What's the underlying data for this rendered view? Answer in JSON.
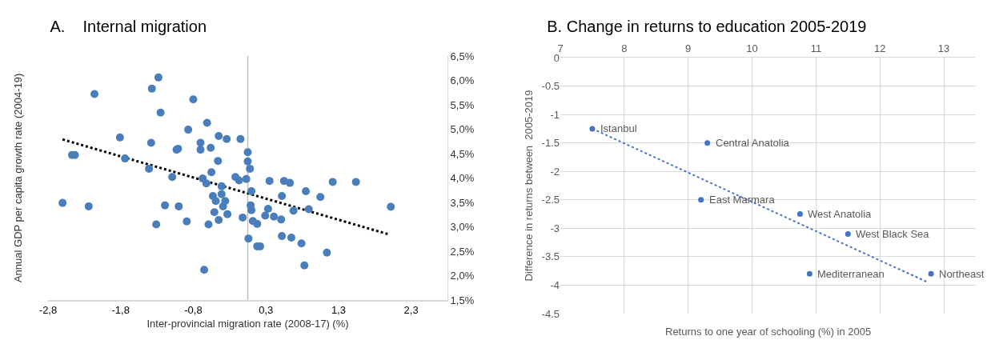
{
  "chart_data": [
    {
      "type": "scatter",
      "title": "A.    Internal migration",
      "xlabel": "Inter-provincial migration rate (2008-17) (%)",
      "ylabel": "Annual GDP per capita growth rate (2004-19)",
      "series": [
        {
          "marker": "circle",
          "color": "#4a7ebb",
          "x": [
            -1.23,
            -2.11,
            -1.32,
            -0.75,
            -1.2,
            -0.56,
            -0.82,
            -1.76,
            -1.33,
            -0.4,
            -0.29,
            -0.1,
            -0.65,
            -0.65,
            -0.51,
            -0.98,
            -0.96,
            -2.42,
            -2.38,
            -1.69,
            0.0,
            0.0,
            0.03,
            -0.41,
            -1.36,
            -1.04,
            -0.5,
            -0.62,
            -0.57,
            -0.17,
            -0.12,
            -0.02,
            -0.36,
            -0.36,
            -0.48,
            -0.44,
            -0.31,
            0.05,
            -2.55,
            -2.19,
            -1.14,
            -0.95,
            -0.34,
            -0.46,
            -0.28,
            -0.4,
            -0.07,
            0.04,
            0.05,
            -1.26,
            -0.84,
            -0.54,
            0.01,
            -0.6,
            0.3,
            0.5,
            0.58,
            1.17,
            1.49,
            0.8,
            0.47,
            1.0,
            1.97,
            0.28,
            0.24,
            0.36,
            0.46,
            0.63,
            0.84,
            0.07,
            0.13,
            0.13,
            0.17,
            0.47,
            0.6,
            0.74,
            1.09,
            0.78
          ],
          "values": [
            6.06,
            5.72,
            5.83,
            5.61,
            5.34,
            5.13,
            4.99,
            4.83,
            4.72,
            4.86,
            4.8,
            4.8,
            4.72,
            4.58,
            4.62,
            4.58,
            4.6,
            4.47,
            4.47,
            4.4,
            4.53,
            4.34,
            4.19,
            4.35,
            4.19,
            4.02,
            4.12,
            3.99,
            3.89,
            4.02,
            3.95,
            3.98,
            3.83,
            3.67,
            3.63,
            3.53,
            3.53,
            3.73,
            3.49,
            3.42,
            3.44,
            3.42,
            3.42,
            3.3,
            3.26,
            3.14,
            3.19,
            3.44,
            3.34,
            3.05,
            3.11,
            3.05,
            2.76,
            2.12,
            3.94,
            3.94,
            3.9,
            3.92,
            3.92,
            3.73,
            3.63,
            3.61,
            3.41,
            3.37,
            3.23,
            3.21,
            3.15,
            3.33,
            3.36,
            3.12,
            3.06,
            2.6,
            2.6,
            2.81,
            2.78,
            2.66,
            2.47,
            2.21
          ]
        },
        {
          "type": "line",
          "color": "#000000",
          "line_style": "dotted",
          "x": [
            -2.55,
            1.93
          ],
          "values": [
            4.79,
            2.85
          ]
        }
      ],
      "grid": false,
      "xlim": [
        -2.75,
        2.75
      ],
      "xticks": [
        {
          "value": -2.75,
          "label": "-2,8"
        },
        {
          "value": -1.75,
          "label": "-1,8"
        },
        {
          "value": -0.75,
          "label": "-0,8"
        },
        {
          "value": 0.25,
          "label": "0,3"
        },
        {
          "value": 1.25,
          "label": "1,3"
        },
        {
          "value": 2.25,
          "label": "2,3"
        }
      ],
      "ylim": [
        1.5,
        6.5
      ],
      "yticks": [
        {
          "value": 1.5,
          "label": "1,5%"
        },
        {
          "value": 2.0,
          "label": "2,0%"
        },
        {
          "value": 2.5,
          "label": "2,5%"
        },
        {
          "value": 3.0,
          "label": "3,0%"
        },
        {
          "value": 3.5,
          "label": "3,5%"
        },
        {
          "value": 4.0,
          "label": "4,0%"
        },
        {
          "value": 4.5,
          "label": "4,5%"
        },
        {
          "value": 5.0,
          "label": "5,0%"
        },
        {
          "value": 5.5,
          "label": "5,5%"
        },
        {
          "value": 6.0,
          "label": "6,0%"
        },
        {
          "value": 6.5,
          "label": "6,5%"
        }
      ],
      "ref_lines": [
        {
          "axis": "x",
          "value": 0,
          "color": "#bfbfbf"
        }
      ]
    },
    {
      "type": "scatter",
      "title": "B. Change in returns to education 2005-2019",
      "xlabel": "Returns to one year of schooling (%) in 2005",
      "ylabel": "Difference in returns between  2005-2019",
      "series": [
        {
          "marker": "circle",
          "color": "#4472c4",
          "x": [
            7.5,
            9.3,
            9.2,
            10.75,
            11.5,
            10.9,
            12.8
          ],
          "values": [
            -1.25,
            -1.5,
            -2.5,
            -2.75,
            -3.1,
            -3.8,
            -3.8
          ]
        },
        {
          "type": "line",
          "color": "#4472c4",
          "line_style": "dotted",
          "x": [
            7.5,
            12.75
          ],
          "values": [
            -1.25,
            -3.95
          ]
        }
      ],
      "annotations": [
        {
          "text": "Istanbul",
          "x": 7.5,
          "y": -1.25
        },
        {
          "text": "Central Anatolia",
          "x": 9.3,
          "y": -1.5
        },
        {
          "text": "East Marmara",
          "x": 9.2,
          "y": -2.5
        },
        {
          "text": "West Anatolia",
          "x": 10.75,
          "y": -2.75
        },
        {
          "text": "West Black Sea",
          "x": 11.5,
          "y": -3.1
        },
        {
          "text": "Mediterranean",
          "x": 10.9,
          "y": -3.8
        },
        {
          "text": "Northeast",
          "x": 12.8,
          "y": -3.8
        }
      ],
      "grid": true,
      "xlim": [
        7,
        13.5
      ],
      "xticks": [
        7,
        8,
        9,
        10,
        11,
        12,
        13
      ],
      "ylim": [
        -4.5,
        0
      ],
      "yticks": [
        0,
        -0.5,
        -1,
        -1.5,
        -2,
        -2.5,
        -3,
        -3.5,
        -4,
        -4.5
      ]
    }
  ]
}
